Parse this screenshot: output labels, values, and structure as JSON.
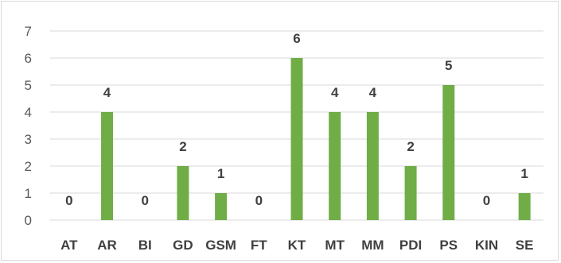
{
  "chart_data": {
    "type": "bar",
    "categories": [
      "AT",
      "AR",
      "BI",
      "GD",
      "GSM",
      "FT",
      "KT",
      "MT",
      "MM",
      "PDI",
      "PS",
      "KIN",
      "SE"
    ],
    "values": [
      0,
      4,
      0,
      2,
      1,
      0,
      6,
      4,
      4,
      2,
      5,
      0,
      1
    ],
    "title": "",
    "xlabel": "",
    "ylabel": "",
    "ylim": [
      0,
      7
    ],
    "yticks": [
      0,
      1,
      2,
      3,
      4,
      5,
      6,
      7
    ],
    "grid": true,
    "legend": "none",
    "data_labels": true,
    "bar_color": "#70ad47",
    "grid_color": "#d9d9d9"
  }
}
